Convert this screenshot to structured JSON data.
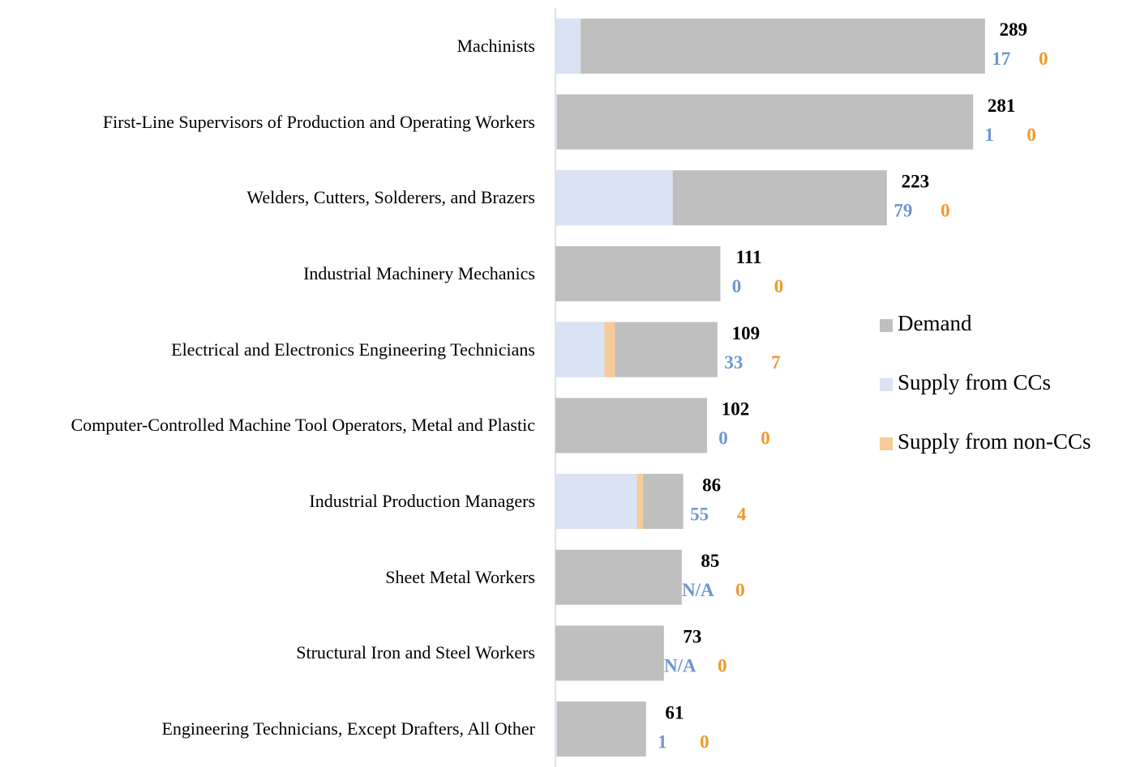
{
  "chart_data": {
    "type": "bar",
    "orientation": "horizontal",
    "overlap": true,
    "categories": [
      "Machinists",
      "First-Line Supervisors of Production and Operating Workers",
      "Welders, Cutters, Solderers, and Brazers",
      "Industrial Machinery Mechanics",
      "Electrical and Electronics Engineering Technicians",
      "Computer-Controlled Machine Tool Operators, Metal and Plastic",
      "Industrial Production Managers",
      "Sheet Metal Workers",
      "Structural Iron and Steel Workers",
      "Engineering Technicians, Except Drafters, All Other"
    ],
    "series": [
      {
        "name": "Demand",
        "color": "#bfbfbf",
        "label_color": "#000000",
        "values": [
          289,
          281,
          223,
          111,
          109,
          102,
          86,
          85,
          73,
          61
        ]
      },
      {
        "name": "Supply from CCs",
        "color": "#dae3f3",
        "label_color": "#6f96d0",
        "values": [
          17,
          1,
          79,
          0,
          33,
          0,
          55,
          null,
          null,
          1
        ],
        "value_labels": [
          "17",
          "1",
          "79",
          "0",
          "33",
          "0",
          "55",
          "N/A",
          "N/A",
          "1"
        ]
      },
      {
        "name": "Supply from non-CCs",
        "color": "#f5cc9a",
        "label_color": "#ed9a2c",
        "values": [
          0,
          0,
          0,
          0,
          7,
          0,
          4,
          0,
          0,
          0
        ]
      }
    ],
    "xlim": [
      0,
      300
    ],
    "legend": "right"
  }
}
